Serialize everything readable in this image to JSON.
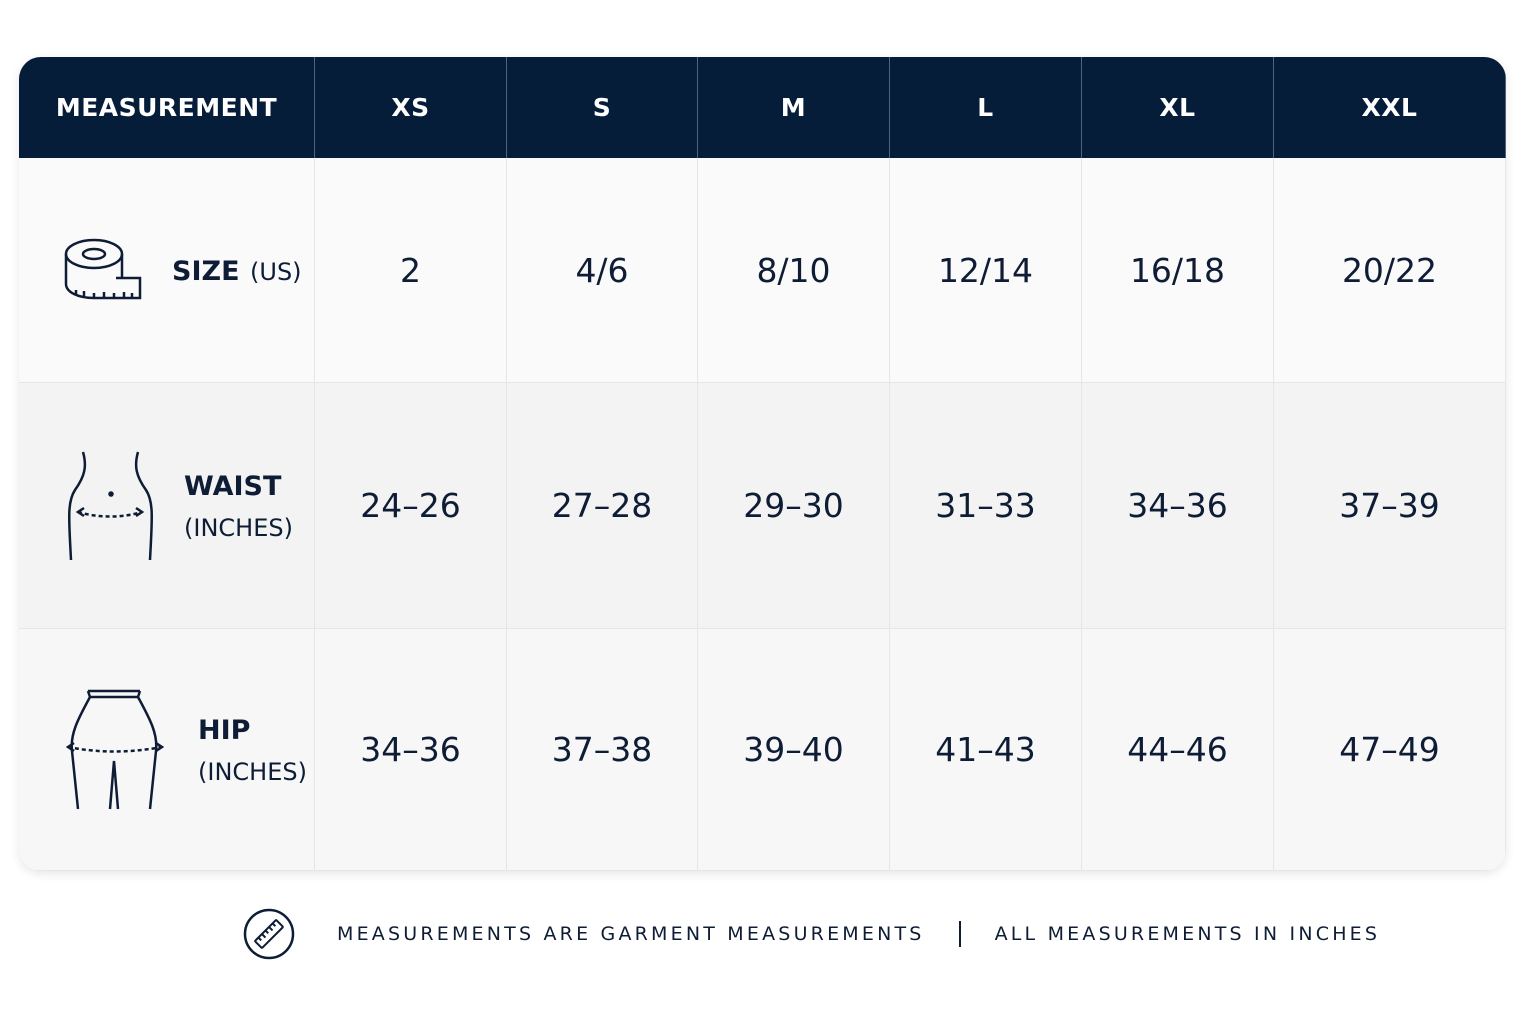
{
  "table": {
    "header": [
      "MEASUREMENT",
      "XS",
      "S",
      "M",
      "L",
      "XL",
      "XXL"
    ],
    "rows": [
      {
        "label": "SIZE",
        "unit": "(US)",
        "values": [
          "2",
          "4/6",
          "8/10",
          "12/14",
          "16/18",
          "20/22"
        ]
      },
      {
        "label": "WAIST",
        "unit": "(INCHES)",
        "values": [
          "24–26",
          "27–28",
          "29–30",
          "31–33",
          "34–36",
          "37–39"
        ]
      },
      {
        "label": "HIP",
        "unit": "(INCHES)",
        "values": [
          "34–36",
          "37–38",
          "39–40",
          "41–43",
          "44–46",
          "47–49"
        ]
      }
    ]
  },
  "footer": {
    "notes": [
      "MEASUREMENTS ARE GARMENT MEASUREMENTS",
      "ALL MEASUREMENTS IN INCHES"
    ]
  }
}
